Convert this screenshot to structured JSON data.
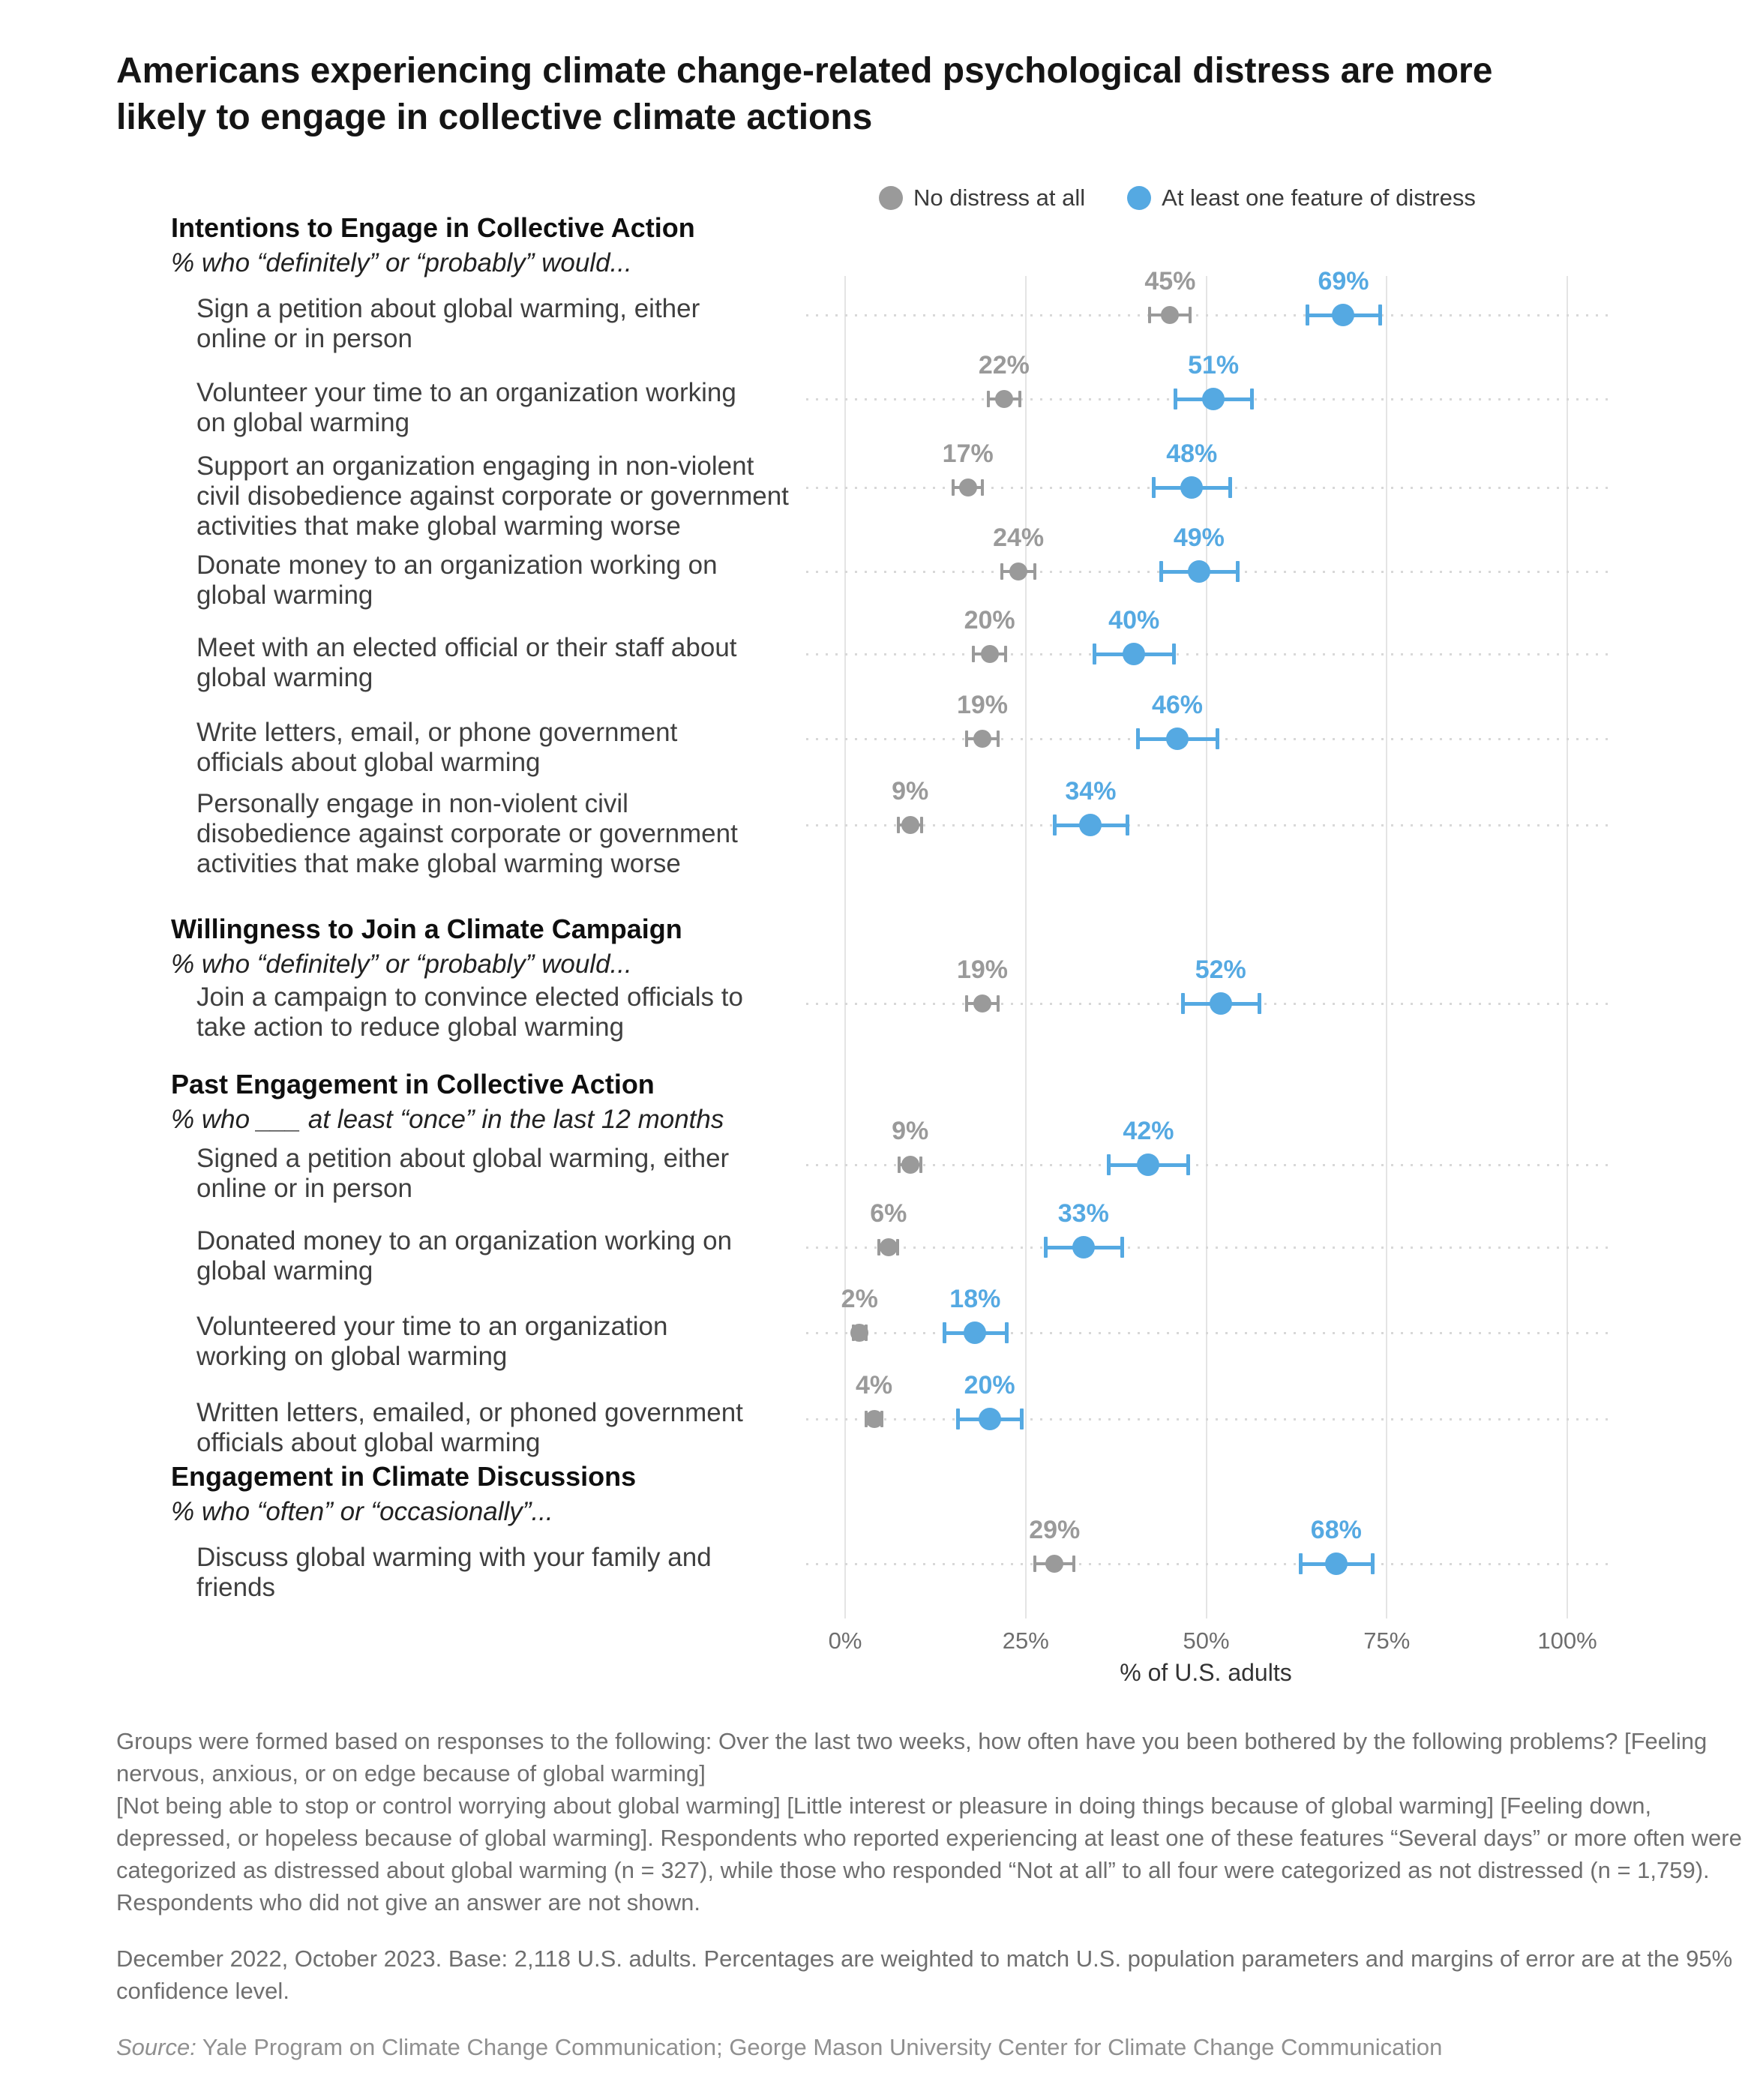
{
  "title": "Americans experiencing climate change-related psychological distress are more likely to engage in collective climate actions",
  "legend": {
    "items": [
      {
        "label": "No distress at all",
        "color": "#9a9a9a"
      },
      {
        "label": "At least one feature of distress",
        "color": "#55a9e2"
      }
    ]
  },
  "axis": {
    "label": "% of U.S. adults",
    "ticks": [
      "0%",
      "25%",
      "50%",
      "75%",
      "100%"
    ],
    "tick_values": [
      0,
      25,
      50,
      75,
      100
    ],
    "min": 0,
    "max": 100
  },
  "chart_data": {
    "type": "dot-range",
    "unit": "percent of U.S. adults",
    "groups": [
      "No distress at all",
      "At least one feature of distress"
    ],
    "colors": {
      "no_distress": "#9a9a9a",
      "distress": "#55a9e2"
    },
    "error_bars": "95% confidence level margins of error",
    "sections": [
      {
        "header": "Intentions to Engage in Collective Action",
        "subtitle": "% who “definitely” or “probably” would...",
        "rows": [
          {
            "label": "Sign a petition about global warming, either online or in person",
            "no_distress": 45,
            "no_distress_label": "45%",
            "no_distress_moe": 2.8,
            "distress": 69,
            "distress_label": "69%",
            "distress_moe": 5
          },
          {
            "label": "Volunteer your time to an organization working on global warming",
            "no_distress": 22,
            "no_distress_label": "22%",
            "no_distress_moe": 2.2,
            "distress": 51,
            "distress_label": "51%",
            "distress_moe": 5.3
          },
          {
            "label": "Support an organization engaging in non-violent civil disobedience against corporate or government activities that make global warming worse",
            "no_distress": 17,
            "no_distress_label": "17%",
            "no_distress_moe": 2.0,
            "distress": 48,
            "distress_label": "48%",
            "distress_moe": 5.3
          },
          {
            "label": "Donate money to an organization working on global warming",
            "no_distress": 24,
            "no_distress_label": "24%",
            "no_distress_moe": 2.3,
            "distress": 49,
            "distress_label": "49%",
            "distress_moe": 5.3
          },
          {
            "label": "Meet with an elected official or their staff about global warming",
            "no_distress": 20,
            "no_distress_label": "20%",
            "no_distress_moe": 2.2,
            "distress": 40,
            "distress_label": "40%",
            "distress_moe": 5.5
          },
          {
            "label": "Write letters, email, or phone government officials about global warming",
            "no_distress": 19,
            "no_distress_label": "19%",
            "no_distress_moe": 2.2,
            "distress": 46,
            "distress_label": "46%",
            "distress_moe": 5.5
          },
          {
            "label": "Personally engage in non-violent civil disobedience against corporate or government activities that make global warming worse",
            "no_distress": 9,
            "no_distress_label": "9%",
            "no_distress_moe": 1.6,
            "distress": 34,
            "distress_label": "34%",
            "distress_moe": 5
          }
        ]
      },
      {
        "header": "Willingness to Join a Climate Campaign",
        "subtitle": "% who “definitely” or “probably” would...",
        "rows": [
          {
            "label": "Join a campaign to convince elected officials to take action to reduce global warming",
            "no_distress": 19,
            "no_distress_label": "19%",
            "no_distress_moe": 2.2,
            "distress": 52,
            "distress_label": "52%",
            "distress_moe": 5.3
          }
        ]
      },
      {
        "header": "Past Engagement in Collective Action",
        "subtitle": "% who ___ at least “once” in the last 12 months",
        "rows": [
          {
            "label": "Signed a petition about global warming, either online or in person",
            "no_distress": 9,
            "no_distress_label": "9%",
            "no_distress_moe": 1.5,
            "distress": 42,
            "distress_label": "42%",
            "distress_moe": 5.5
          },
          {
            "label": "Donated money to an organization working on global warming",
            "no_distress": 6,
            "no_distress_label": "6%",
            "no_distress_moe": 1.3,
            "distress": 33,
            "distress_label": "33%",
            "distress_moe": 5.3
          },
          {
            "label": "Volunteered your time to an organization working on global warming",
            "no_distress": 2,
            "no_distress_label": "2%",
            "no_distress_moe": 0.9,
            "distress": 18,
            "distress_label": "18%",
            "distress_moe": 4.3
          },
          {
            "label": "Written letters, emailed, or phoned government officials about global warming",
            "no_distress": 4,
            "no_distress_label": "4%",
            "no_distress_moe": 1.1,
            "distress": 20,
            "distress_label": "20%",
            "distress_moe": 4.4
          }
        ]
      },
      {
        "header": "Engagement in Climate Discussions",
        "subtitle": "% who “often” or “occasionally”...",
        "rows": [
          {
            "label": "Discuss global warming with your family and friends",
            "no_distress": 29,
            "no_distress_label": "29%",
            "no_distress_moe": 2.7,
            "distress": 68,
            "distress_label": "68%",
            "distress_moe": 5
          }
        ]
      }
    ]
  },
  "footnotes": [
    "Groups were formed based on responses to the following: Over the last two weeks, how often have you been bothered by the following problems? [Feeling nervous, anxious, or on edge because of global warming]",
    "[Not being able to stop or control worrying about global warming] [Little interest or pleasure in doing things because of global warming] [Feeling down, depressed, or hopeless because of global warming]. Respondents who reported experiencing at least one of these features “Several days” or more often were categorized as distressed about global warming (n = 327), while those who responded “Not at all” to all four were categorized as not distressed (n = 1,759). Respondents who did not give an answer are not shown.",
    "December 2022, October 2023. Base: 2,118 U.S. adults. Percentages are weighted to match U.S. population parameters and margins of error are at the 95% confidence level."
  ],
  "source": {
    "prefix": "Source:",
    "text": " Yale Program on Climate Change Communication; George Mason University Center for Climate Change Communication"
  }
}
